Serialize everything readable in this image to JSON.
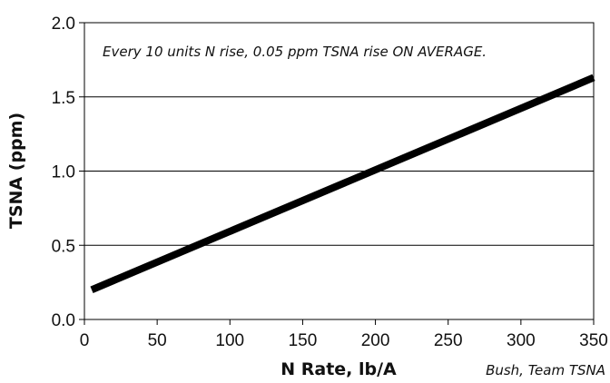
{
  "chart_data": {
    "type": "line",
    "title": "",
    "xlabel": "N Rate, lb/A",
    "ylabel": "TSNA (ppm)",
    "xlim": [
      0,
      350
    ],
    "ylim": [
      0,
      2.0
    ],
    "x_ticks": [
      0,
      50,
      100,
      150,
      200,
      250,
      300,
      350
    ],
    "x_tick_labels": [
      "0",
      "50",
      "100",
      "150",
      "200",
      "250",
      "300",
      "350"
    ],
    "y_ticks": [
      0,
      0.5,
      1.0,
      1.5,
      2.0
    ],
    "y_tick_labels": [
      "0.0",
      "0.5",
      "1.0",
      "1.5",
      "2.0"
    ],
    "grid": "horizontal",
    "series": [
      {
        "x": [
          5,
          350
        ],
        "y": [
          0.2,
          1.63
        ],
        "color": "#000000"
      }
    ],
    "annotation": "Every 10 units N rise, 0.05 ppm TSNA rise ON AVERAGE.",
    "credit": "Bush, Team TSNA"
  }
}
